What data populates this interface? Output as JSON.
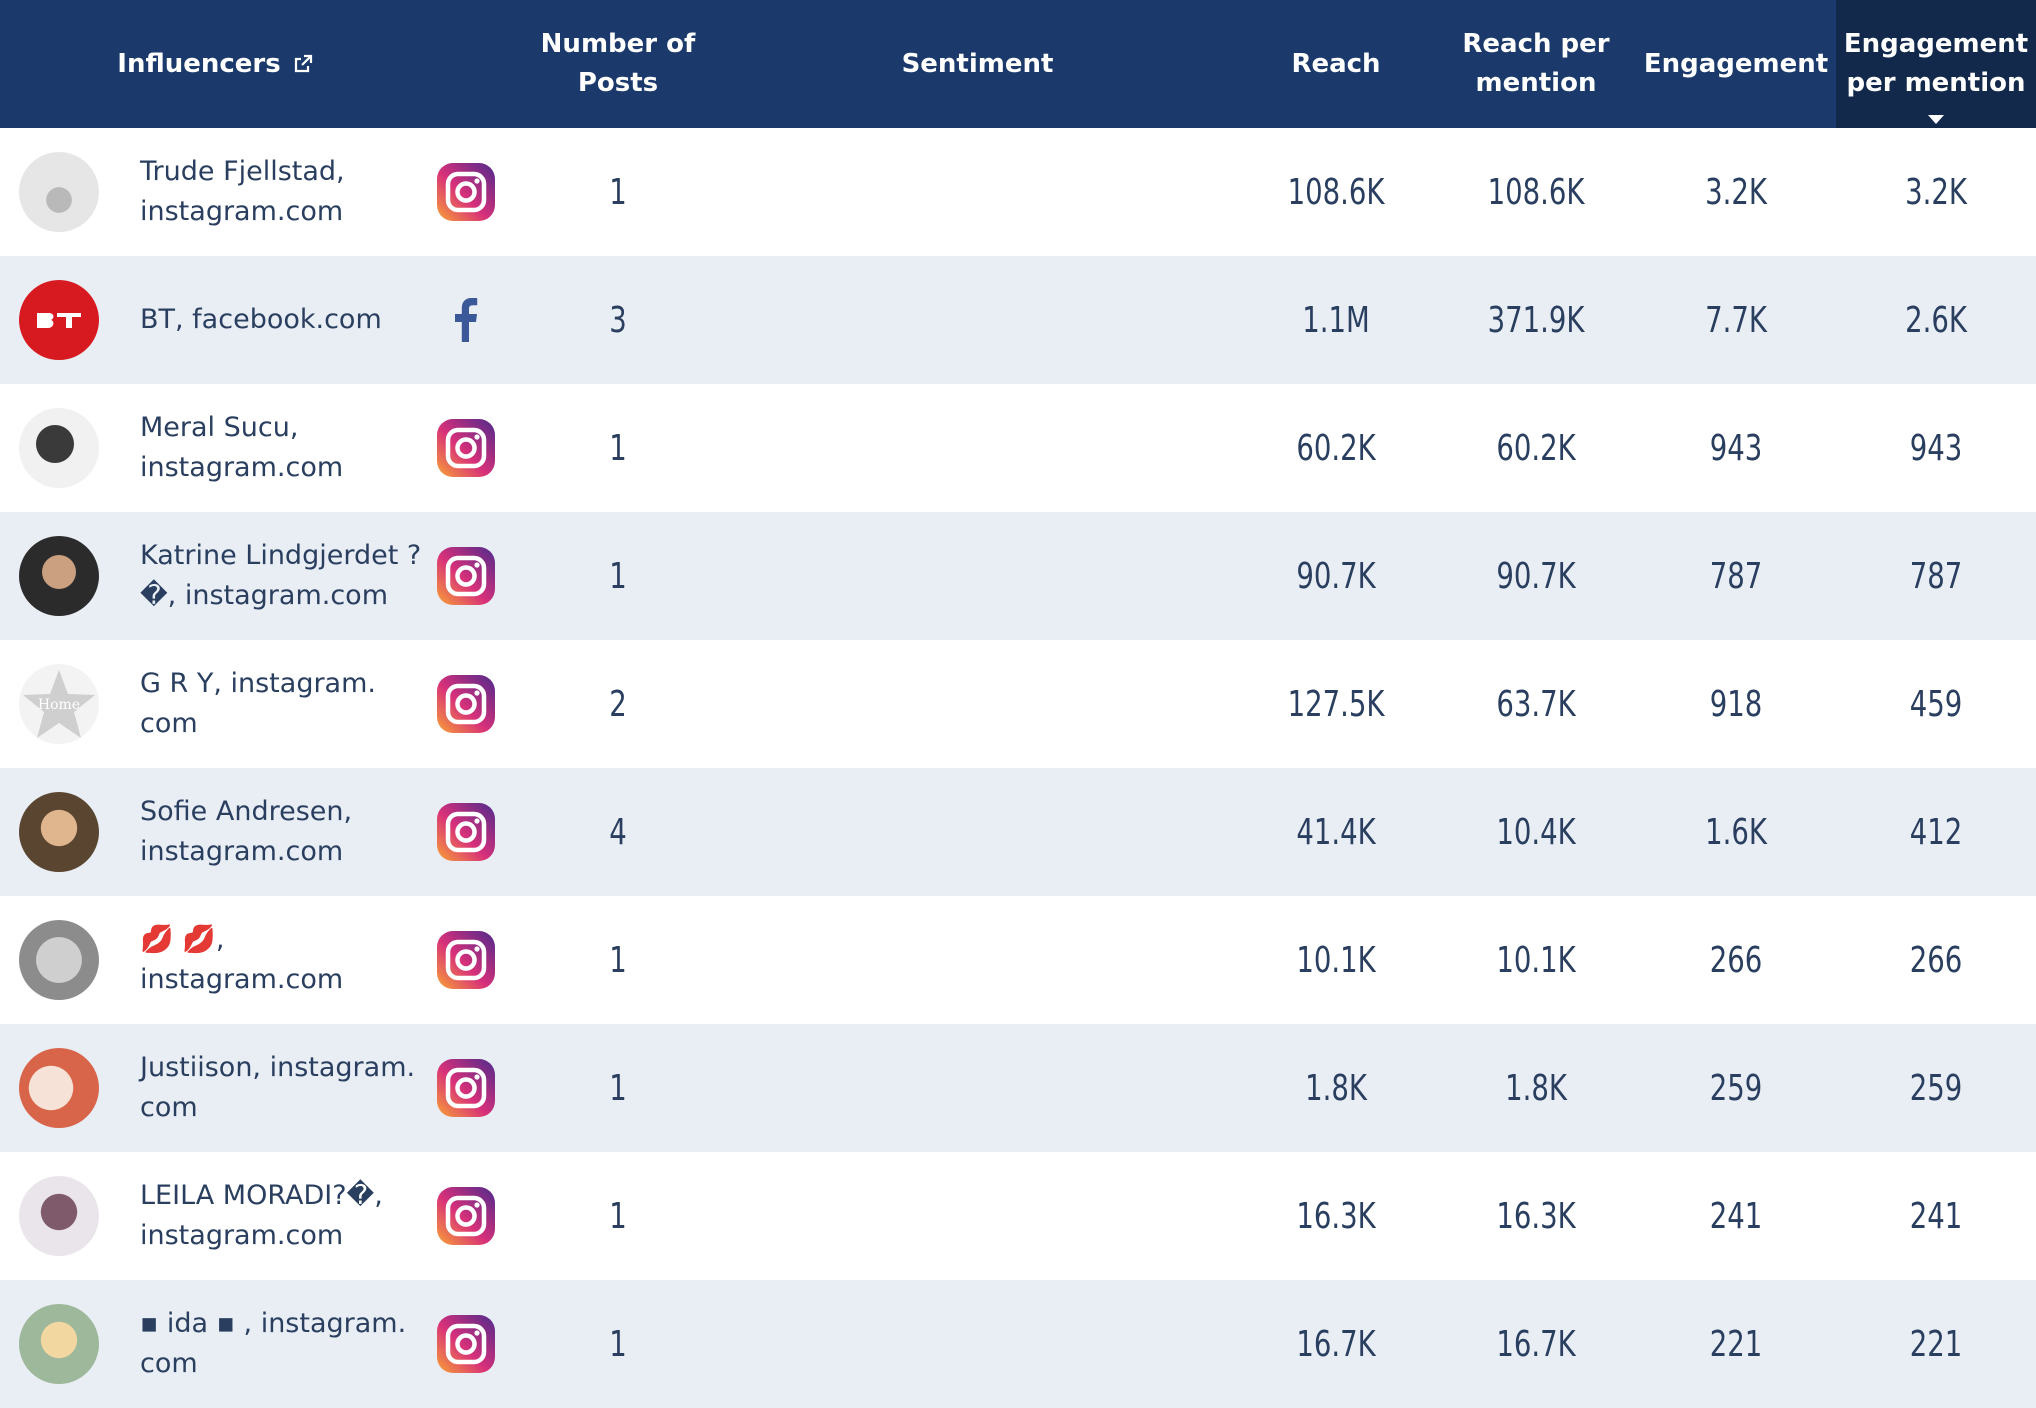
{
  "header": {
    "influencers": "Influencers",
    "posts": "Number of Posts",
    "sentiment": "Sentiment",
    "reach": "Reach",
    "reach_per_mention": "Reach per mention",
    "engagement": "Engagement",
    "engagement_per_mention": "Engagement per mention"
  },
  "colors": {
    "header": "#1b3a6b",
    "active_header": "#13294b",
    "row_alt": "#e9eef5",
    "text": "#2a3f5f"
  },
  "rows": [
    {
      "name": "Trude Fjellstad, instagram.com",
      "platform": "instagram",
      "posts": "1",
      "reach": "108.6K",
      "reach_per_mention": "108.6K",
      "engagement": "3.2K",
      "engagement_per_mention": "3.2K"
    },
    {
      "name": "BT, facebook.com",
      "platform": "facebook",
      "posts": "3",
      "reach": "1.1M",
      "reach_per_mention": "371.9K",
      "engagement": "7.7K",
      "engagement_per_mention": "2.6K"
    },
    {
      "name": "Meral Sucu, instagram.com",
      "platform": "instagram",
      "posts": "1",
      "reach": "60.2K",
      "reach_per_mention": "60.2K",
      "engagement": "943",
      "engagement_per_mention": "943"
    },
    {
      "name": "Katrine Lindgjerdet ? �, instagram.com",
      "platform": "instagram",
      "posts": "1",
      "reach": "90.7K",
      "reach_per_mention": "90.7K",
      "engagement": "787",
      "engagement_per_mention": "787"
    },
    {
      "name": "G R Y, instagram. com",
      "platform": "instagram",
      "posts": "2",
      "reach": "127.5K",
      "reach_per_mention": "63.7K",
      "engagement": "918",
      "engagement_per_mention": "459"
    },
    {
      "name": "Sofie Andresen, instagram.com",
      "platform": "instagram",
      "posts": "4",
      "reach": "41.4K",
      "reach_per_mention": "10.4K",
      "engagement": "1.6K",
      "engagement_per_mention": "412"
    },
    {
      "name": "💋 💋, instagram.com",
      "platform": "instagram",
      "posts": "1",
      "reach": "10.1K",
      "reach_per_mention": "10.1K",
      "engagement": "266",
      "engagement_per_mention": "266"
    },
    {
      "name": "Justiison, instagram. com",
      "platform": "instagram",
      "posts": "1",
      "reach": "1.8K",
      "reach_per_mention": "1.8K",
      "engagement": "259",
      "engagement_per_mention": "259"
    },
    {
      "name": "LEILA MORADI?�, instagram.com",
      "platform": "instagram",
      "posts": "1",
      "reach": "16.3K",
      "reach_per_mention": "16.3K",
      "engagement": "241",
      "engagement_per_mention": "241"
    },
    {
      "name": "▪ ida ▪ , instagram. com",
      "platform": "instagram",
      "posts": "1",
      "reach": "16.7K",
      "reach_per_mention": "16.7K",
      "engagement": "221",
      "engagement_per_mention": "221"
    }
  ]
}
